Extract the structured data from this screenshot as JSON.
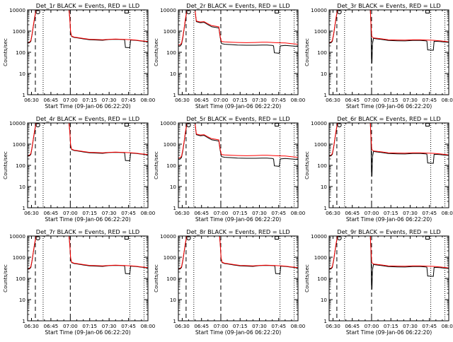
{
  "figure": {
    "colors": {
      "events": "#000000",
      "lld": "#ff0000",
      "frame": "#000000"
    },
    "panels_note": "",
    "chart_data": [
      {
        "type": "line",
        "title": "Det_1r BLACK = Events, RED = LLD",
        "ylabel": "Counts/sec",
        "xlabel": "Start Time (09-Jan-06 06:22:20)"
      },
      {
        "type": "line",
        "title": "Det_2r BLACK = Events, RED = LLD",
        "ylabel": "Counts/sec",
        "xlabel": "Start Time (09-Jan-06 06:22:20)"
      },
      {
        "type": "line",
        "title": "Det_3r BLACK = Events, RED = LLD",
        "ylabel": "Counts/sec",
        "xlabel": "Start Time (09-Jan-06 06:22:20)"
      },
      {
        "type": "line",
        "title": "Det_4r BLACK = Events, RED = LLD",
        "ylabel": "Counts/sec",
        "xlabel": "Start Time (09-Jan-06 06:22:20)"
      },
      {
        "type": "line",
        "title": "Det_5r BLACK = Events, RED = LLD",
        "ylabel": "Counts/sec",
        "xlabel": "Start Time (09-Jan-06 06:22:20)"
      },
      {
        "type": "line",
        "title": "Det_6r BLACK = Events, RED = LLD",
        "ylabel": "Counts/sec",
        "xlabel": "Start Time (09-Jan-06 06:22:20)"
      },
      {
        "type": "line",
        "title": "Det_7r BLACK = Events, RED = LLD",
        "ylabel": "Counts/sec",
        "xlabel": "Start Time (09-Jan-06 06:22:20)"
      },
      {
        "type": "line",
        "title": "Det_8r BLACK = Events, RED = LLD",
        "ylabel": "Counts/sec",
        "xlabel": "Start Time (09-Jan-06 06:22:20)"
      },
      {
        "type": "line",
        "title": "Det_9r BLACK = Events, RED = LLD",
        "ylabel": "Counts/sec",
        "xlabel": "Start Time (09-Jan-06 06:22:20)"
      }
    ],
    "shared": {
      "x_range_min": [
        387,
        480
      ],
      "y_range": [
        1,
        10000
      ],
      "y_scale": "log",
      "x_ticks": [
        "06:30",
        "06:45",
        "07:00",
        "07:15",
        "07:30",
        "07:45",
        "08:00"
      ],
      "x_tick_min": [
        390,
        405,
        420,
        435,
        450,
        465,
        480
      ],
      "y_ticks": [
        "1",
        "10",
        "100",
        "1000",
        "10000"
      ],
      "y_tick_values": [
        1,
        10,
        100,
        1000,
        10000
      ],
      "dashed_lines_min": [
        393,
        420
      ],
      "dotted_lines_min": [
        399,
        466,
        477
      ],
      "legend": "none",
      "grid": false
    },
    "series": {
      "typeA": {
        "black": [
          [
            387,
            270
          ],
          [
            388.5,
            280
          ],
          [
            389.5,
            330
          ],
          [
            390.5,
            700
          ],
          [
            391.5,
            1800
          ],
          [
            392.5,
            4500
          ],
          [
            393.5,
            9000
          ],
          [
            394,
            10000
          ],
          [
            419,
            10000
          ],
          [
            419.6,
            4000
          ],
          [
            420.2,
            900
          ],
          [
            421,
            560
          ],
          [
            423,
            500
          ],
          [
            426,
            470
          ],
          [
            430,
            430
          ],
          [
            435,
            390
          ],
          [
            440,
            380
          ],
          [
            445,
            370
          ],
          [
            450,
            400
          ],
          [
            455,
            410
          ],
          [
            460,
            400
          ],
          [
            462,
            390
          ],
          [
            462.6,
            170
          ],
          [
            466,
            165
          ],
          [
            466.6,
            380
          ],
          [
            470,
            370
          ],
          [
            475,
            340
          ],
          [
            480,
            310
          ]
        ],
        "red": [
          [
            387,
            290
          ],
          [
            388.5,
            300
          ],
          [
            389.5,
            360
          ],
          [
            390.5,
            760
          ],
          [
            391.5,
            1900
          ],
          [
            392.5,
            4800
          ],
          [
            393.5,
            9500
          ],
          [
            394,
            10000
          ],
          [
            419,
            10000
          ],
          [
            419.6,
            4200
          ],
          [
            420.2,
            950
          ],
          [
            421,
            580
          ],
          [
            423,
            520
          ],
          [
            426,
            490
          ],
          [
            430,
            450
          ],
          [
            435,
            410
          ],
          [
            440,
            400
          ],
          [
            445,
            390
          ],
          [
            450,
            410
          ],
          [
            455,
            420
          ],
          [
            460,
            410
          ],
          [
            462,
            405
          ],
          [
            466,
            395
          ],
          [
            470,
            380
          ],
          [
            475,
            350
          ],
          [
            480,
            320
          ]
        ]
      },
      "typeB": {
        "black": [
          [
            387,
            190
          ],
          [
            388.5,
            200
          ],
          [
            389.5,
            240
          ],
          [
            390.5,
            500
          ],
          [
            391.5,
            1300
          ],
          [
            392.5,
            3500
          ],
          [
            393.5,
            8000
          ],
          [
            394,
            10000
          ],
          [
            400,
            10000
          ],
          [
            400.5,
            5000
          ],
          [
            401,
            2800
          ],
          [
            404,
            2500
          ],
          [
            407,
            2600
          ],
          [
            410,
            2000
          ],
          [
            413,
            1600
          ],
          [
            416,
            1500
          ],
          [
            418.5,
            1400
          ],
          [
            419.5,
            500
          ],
          [
            420.5,
            260
          ],
          [
            423,
            240
          ],
          [
            428,
            230
          ],
          [
            433,
            220
          ],
          [
            440,
            215
          ],
          [
            447,
            215
          ],
          [
            452,
            220
          ],
          [
            456,
            220
          ],
          [
            460,
            210
          ],
          [
            461,
            200
          ],
          [
            461.6,
            95
          ],
          [
            465.5,
            90
          ],
          [
            466.2,
            200
          ],
          [
            470,
            210
          ],
          [
            475,
            200
          ],
          [
            480,
            190
          ]
        ],
        "red": [
          [
            387,
            220
          ],
          [
            388.5,
            230
          ],
          [
            389.5,
            270
          ],
          [
            390.5,
            560
          ],
          [
            391.5,
            1400
          ],
          [
            392.5,
            3800
          ],
          [
            393.5,
            8600
          ],
          [
            394,
            10000
          ],
          [
            400,
            10000
          ],
          [
            400.5,
            5200
          ],
          [
            401,
            3000
          ],
          [
            404,
            2700
          ],
          [
            407,
            2800
          ],
          [
            410,
            2200
          ],
          [
            413,
            1800
          ],
          [
            416,
            1700
          ],
          [
            418.5,
            1600
          ],
          [
            419.5,
            560
          ],
          [
            420.5,
            320
          ],
          [
            423,
            310
          ],
          [
            428,
            300
          ],
          [
            433,
            290
          ],
          [
            440,
            285
          ],
          [
            447,
            290
          ],
          [
            452,
            300
          ],
          [
            456,
            300
          ],
          [
            460,
            290
          ],
          [
            466,
            280
          ],
          [
            470,
            275
          ],
          [
            475,
            255
          ],
          [
            480,
            240
          ]
        ]
      },
      "typeC": {
        "black": [
          [
            387,
            270
          ],
          [
            388.5,
            280
          ],
          [
            389.5,
            330
          ],
          [
            390.5,
            700
          ],
          [
            391.5,
            1800
          ],
          [
            392.5,
            4500
          ],
          [
            393.5,
            9000
          ],
          [
            394,
            10000
          ],
          [
            419,
            10000
          ],
          [
            419.5,
            2000
          ],
          [
            419.9,
            50
          ],
          [
            420.3,
            30
          ],
          [
            420.7,
            250
          ],
          [
            421.5,
            450
          ],
          [
            424,
            430
          ],
          [
            428,
            400
          ],
          [
            433,
            360
          ],
          [
            440,
            350
          ],
          [
            446,
            345
          ],
          [
            452,
            360
          ],
          [
            458,
            360
          ],
          [
            462,
            350
          ],
          [
            463,
            340
          ],
          [
            463.6,
            130
          ],
          [
            468,
            125
          ],
          [
            468.6,
            330
          ],
          [
            473,
            320
          ],
          [
            478,
            300
          ],
          [
            480,
            295
          ]
        ],
        "red": [
          [
            387,
            290
          ],
          [
            388.5,
            300
          ],
          [
            389.5,
            360
          ],
          [
            390.5,
            760
          ],
          [
            391.5,
            1900
          ],
          [
            392.5,
            4800
          ],
          [
            393.5,
            9500
          ],
          [
            394,
            10000
          ],
          [
            419,
            10000
          ],
          [
            419.5,
            2200
          ],
          [
            420.2,
            560
          ],
          [
            421.5,
            480
          ],
          [
            424,
            460
          ],
          [
            428,
            430
          ],
          [
            433,
            390
          ],
          [
            440,
            380
          ],
          [
            446,
            375
          ],
          [
            452,
            390
          ],
          [
            458,
            390
          ],
          [
            462,
            380
          ],
          [
            468,
            370
          ],
          [
            473,
            350
          ],
          [
            478,
            320
          ],
          [
            480,
            310
          ]
        ]
      }
    },
    "panel_series": [
      "typeA",
      "typeB",
      "typeC",
      "typeA",
      "typeB",
      "typeC",
      "typeA",
      "typeA",
      "typeC"
    ],
    "upper_marks": {
      "circle_min": 395,
      "square_min": 463.5
    }
  }
}
